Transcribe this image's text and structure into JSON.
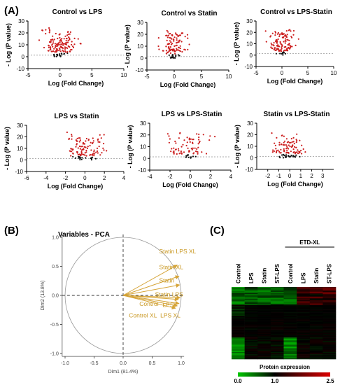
{
  "panel_labels": {
    "a": "(A)",
    "b": "(B)",
    "c": "(C)"
  },
  "colors": {
    "significant": "#cc1f1f",
    "nonsignificant": "#111111",
    "pca_arrow": "#d6a437",
    "pca_text": "#c8961e"
  },
  "chart_data": [
    {
      "type": "scatter",
      "subtype": "volcano",
      "title": "Control vs LPS",
      "xlabel": "Log (Fold Change)",
      "ylabel": "- Log (P value)",
      "xlim": [
        -5,
        10
      ],
      "ylim": [
        -10,
        30
      ],
      "xticks": [
        "-5",
        "0",
        "5",
        "10"
      ],
      "yticks": [
        "-10",
        "0",
        "10",
        "20",
        "30"
      ],
      "significance_line": 1.3
    },
    {
      "type": "scatter",
      "subtype": "volcano",
      "title": "Control vs Statin",
      "xlabel": "Log (Fold Change)",
      "ylabel": "- Log (P value)",
      "xlim": [
        -5,
        10
      ],
      "ylim": [
        -10,
        30
      ],
      "xticks": [
        "-5",
        "0",
        "5",
        "10"
      ],
      "yticks": [
        "-10",
        "0",
        "10",
        "20",
        "30"
      ],
      "significance_line": 1.3
    },
    {
      "type": "scatter",
      "subtype": "volcano",
      "title": "Control vs LPS-Statin",
      "xlabel": "Log (Fold Change)",
      "ylabel": "- Log (P value)",
      "xlim": [
        -5,
        10
      ],
      "ylim": [
        -10,
        30
      ],
      "xticks": [
        "-5",
        "0",
        "5",
        "10"
      ],
      "yticks": [
        "-10",
        "0",
        "10",
        "20",
        "30"
      ],
      "significance_line": 1.3
    },
    {
      "type": "scatter",
      "subtype": "volcano",
      "title": "LPS vs Statin",
      "xlabel": "Log (Fold Change)",
      "ylabel": "- Log (P value)",
      "xlim": [
        -6,
        4
      ],
      "ylim": [
        -10,
        30
      ],
      "xticks": [
        "-6",
        "-4",
        "-2",
        "0",
        "2",
        "4"
      ],
      "yticks": [
        "-10",
        "0",
        "10",
        "20",
        "30"
      ],
      "significance_line": 1.3
    },
    {
      "type": "scatter",
      "subtype": "volcano",
      "title": "LPS vs LPS-Statin",
      "xlabel": "Log (Fold Change)",
      "ylabel": "- Log (P value)",
      "xlim": [
        -4,
        4
      ],
      "ylim": [
        -10,
        30
      ],
      "xticks": [
        "-4",
        "-2",
        "0",
        "2",
        "4"
      ],
      "yticks": [
        "-10",
        "0",
        "10",
        "20",
        "30"
      ],
      "significance_line": 1.3
    },
    {
      "type": "scatter",
      "subtype": "volcano",
      "title": "Statin vs LPS-Statin",
      "xlabel": "Log (Fold Change)",
      "ylabel": "- Log (P value)",
      "xlim": [
        -3,
        4
      ],
      "ylim": [
        -10,
        30
      ],
      "xticks": [
        "-2",
        "-1",
        "0",
        "1",
        "2",
        "3"
      ],
      "yticks": [
        "-10",
        "0",
        "10",
        "20",
        "30"
      ],
      "significance_line": 1.3
    },
    {
      "type": "scatter",
      "subtype": "pca-variables",
      "title": "Variables - PCA",
      "xlabel": "Dim1 (81.4%)",
      "ylabel": "Dim2 (13.8%)",
      "xlim": [
        -1.0,
        1.0
      ],
      "ylim": [
        -1.0,
        1.0
      ],
      "xticks": [
        "-1.0",
        "-0.5",
        "0.0",
        "0.5",
        "1.0"
      ],
      "yticks": [
        "-1.0",
        "-0.5",
        "0.0",
        "0.5",
        "1.0"
      ],
      "variables": [
        {
          "name": "Statin LPS XL",
          "x": 0.93,
          "y": 0.52
        },
        {
          "name": "Statin XL",
          "x": 0.96,
          "y": 0.33
        },
        {
          "name": "Statin",
          "x": 0.97,
          "y": 0.18
        },
        {
          "name": "Statin LPS",
          "x": 0.98,
          "y": -0.04
        },
        {
          "name": "Control",
          "x": 0.95,
          "y": -0.07
        },
        {
          "name": "LPS",
          "x": 0.96,
          "y": -0.14
        },
        {
          "name": "Control XL",
          "x": 0.93,
          "y": -0.18
        },
        {
          "name": "LPS XL",
          "x": 0.9,
          "y": -0.22
        }
      ]
    },
    {
      "type": "heatmap",
      "columns": [
        "Control",
        "LPS",
        "Statin",
        "ST-LPS",
        "Control",
        "LPS",
        "Statin",
        "ST-LPS"
      ],
      "column_group": {
        "label": "ETD-XL",
        "start": 4,
        "end": 7
      },
      "colorbar": {
        "label": "Protein expression",
        "ticks": [
          "0.0",
          "1.0",
          "2.5"
        ],
        "range": [
          0.0,
          2.5
        ]
      }
    }
  ]
}
